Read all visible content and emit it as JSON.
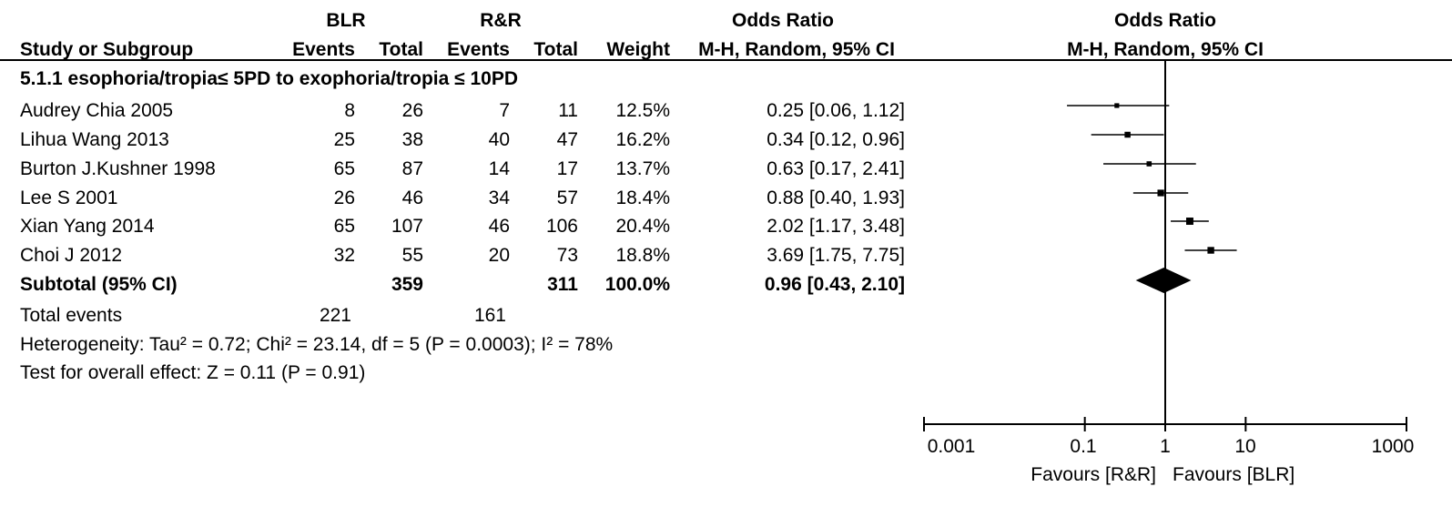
{
  "header": {
    "group1": "BLR",
    "group2": "R&R",
    "or_table_title": "Odds Ratio",
    "or_plot_title": "Odds Ratio",
    "study_col": "Study or Subgroup",
    "events_label_1": "Events",
    "total_label_1": "Total",
    "events_label_2": "Events",
    "total_label_2": "Total",
    "weight_col": "Weight",
    "method_table": "M-H, Random, 95% CI",
    "method_plot": "M-H, Random, 95% CI"
  },
  "subgroup_title": "5.1.1 esophoria/tropia≤ 5PD to exophoria/tropia ≤ 10PD",
  "studies": [
    {
      "name": "Audrey Chia 2005",
      "e1": "8",
      "n1": "26",
      "e2": "7",
      "n2": "11",
      "weight": "12.5%",
      "ci_text": "0.25 [0.06, 1.12]"
    },
    {
      "name": "Lihua Wang 2013",
      "e1": "25",
      "n1": "38",
      "e2": "40",
      "n2": "47",
      "weight": "16.2%",
      "ci_text": "0.34 [0.12, 0.96]"
    },
    {
      "name": "Burton J.Kushner 1998",
      "e1": "65",
      "n1": "87",
      "e2": "14",
      "n2": "17",
      "weight": "13.7%",
      "ci_text": "0.63 [0.17, 2.41]"
    },
    {
      "name": "Lee S 2001",
      "e1": "26",
      "n1": "46",
      "e2": "34",
      "n2": "57",
      "weight": "18.4%",
      "ci_text": "0.88 [0.40, 1.93]"
    },
    {
      "name": "Xian Yang  2014",
      "e1": "65",
      "n1": "107",
      "e2": "46",
      "n2": "106",
      "weight": "20.4%",
      "ci_text": "2.02 [1.17, 3.48]"
    },
    {
      "name": "Choi J 2012",
      "e1": "32",
      "n1": "55",
      "e2": "20",
      "n2": "73",
      "weight": "18.8%",
      "ci_text": "3.69 [1.75, 7.75]"
    }
  ],
  "subtotal": {
    "label": "Subtotal (95% CI)",
    "n1": "359",
    "n2": "311",
    "weight": "100.0%",
    "ci_text": "0.96 [0.43, 2.10]"
  },
  "total_events": {
    "label": "Total events",
    "e1": "221",
    "e2": "161"
  },
  "heterogeneity": "Heterogeneity: Tau² = 0.72; Chi² = 23.14, df = 5 (P = 0.0003); I² = 78%",
  "overall_effect": "Test for overall effect: Z = 0.11 (P = 0.91)",
  "axis": {
    "ticks": [
      "0.001",
      "0.1",
      "1",
      "10",
      "1000"
    ],
    "favours_left": "Favours [R&R]",
    "favours_right": "Favours [BLR]"
  },
  "chart_data": {
    "type": "scatter",
    "plot_kind": "forest",
    "x_scale": "log",
    "xlim": [
      0.001,
      1000
    ],
    "reference_line": 1,
    "tick_values": [
      0.001,
      0.1,
      1,
      10,
      1000
    ],
    "studies": [
      {
        "name": "Audrey Chia 2005",
        "or": 0.25,
        "lower": 0.06,
        "upper": 1.12,
        "weight": 12.5
      },
      {
        "name": "Lihua Wang 2013",
        "or": 0.34,
        "lower": 0.12,
        "upper": 0.96,
        "weight": 16.2
      },
      {
        "name": "Burton J.Kushner 1998",
        "or": 0.63,
        "lower": 0.17,
        "upper": 2.41,
        "weight": 13.7
      },
      {
        "name": "Lee S 2001",
        "or": 0.88,
        "lower": 0.4,
        "upper": 1.93,
        "weight": 18.4
      },
      {
        "name": "Xian Yang  2014",
        "or": 2.02,
        "lower": 1.17,
        "upper": 3.48,
        "weight": 20.4
      },
      {
        "name": "Choi J 2012",
        "or": 3.69,
        "lower": 1.75,
        "upper": 7.75,
        "weight": 18.8
      }
    ],
    "pooled": {
      "name": "Subtotal (95% CI)",
      "or": 0.96,
      "lower": 0.43,
      "upper": 2.1
    }
  }
}
